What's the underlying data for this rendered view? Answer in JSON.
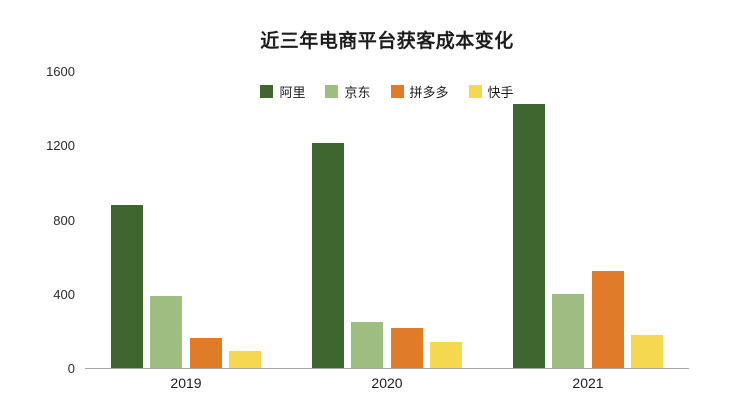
{
  "chart_data": {
    "type": "bar",
    "title": "近三年电商平台获客成本变化",
    "categories": [
      "2019",
      "2020",
      "2021"
    ],
    "series": [
      {
        "name": "阿里",
        "color": "#3e662e",
        "values": [
          880,
          1210,
          1420
        ]
      },
      {
        "name": "京东",
        "color": "#9dbe80",
        "values": [
          390,
          250,
          400
        ]
      },
      {
        "name": "拼多多",
        "color": "#e07b28",
        "values": [
          160,
          215,
          520
        ]
      },
      {
        "name": "快手",
        "color": "#f6d850",
        "values": [
          90,
          140,
          180
        ]
      }
    ],
    "xlabel": "",
    "ylabel": "",
    "ylim": [
      0,
      1600
    ],
    "yticks": [
      0,
      400,
      800,
      1200,
      1600
    ],
    "grid": false,
    "legend_position": "top-center",
    "axis_line_color": "#a8a8a8",
    "background_color": "#ffffff"
  }
}
